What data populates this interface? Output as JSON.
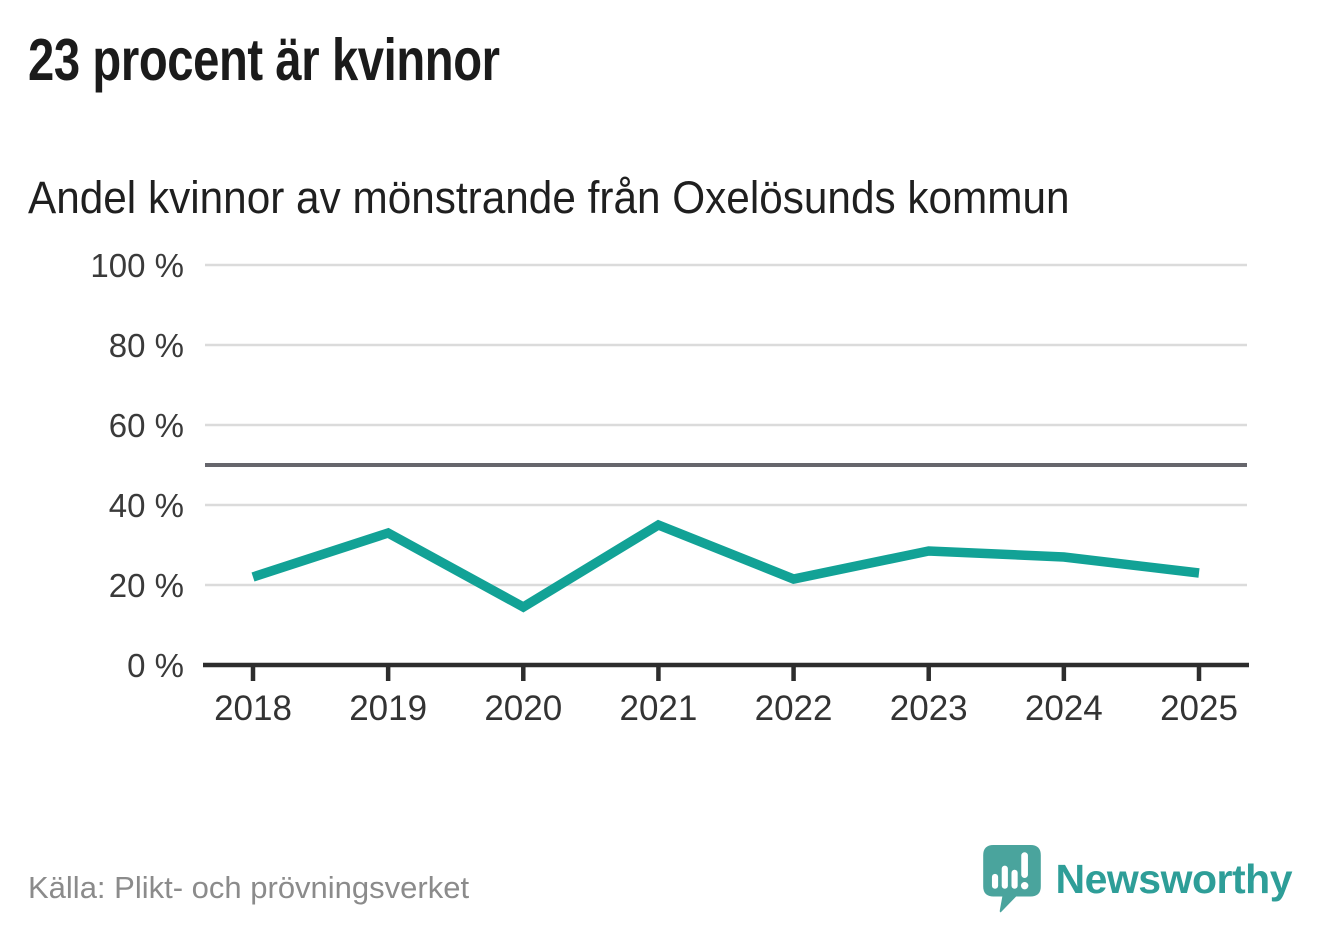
{
  "header": {
    "title": "23 procent är kvinnor",
    "subtitle": "Andel kvinnor av mönstrande från Oxelösunds kommun"
  },
  "footer": {
    "source": "Källa: Plikt- och prövningsverket",
    "brand": "Newsworthy"
  },
  "colors": {
    "line": "#12A296",
    "reference_line": "#66666C",
    "gridline": "#DBDBDB",
    "axis": "#2D2D2D",
    "y_label": "#3A3A3A",
    "x_label": "#333333",
    "brand_icon_teal": "#4AA49D",
    "brand_text_teal": "#2E9E98"
  },
  "chart_data": {
    "type": "line",
    "x": [
      2018,
      2019,
      2020,
      2021,
      2022,
      2023,
      2024,
      2025
    ],
    "values": [
      22,
      33,
      14.5,
      35,
      21.5,
      28.5,
      27,
      23
    ],
    "series_name": "Andel kvinnor av mönstrande",
    "unit": "%",
    "title": "23 procent är kvinnor",
    "subtitle": "Andel kvinnor av mönstrande från Oxelösunds kommun",
    "xlabel": "",
    "ylabel": "",
    "ylim": [
      0,
      100
    ],
    "y_ticks": [
      0,
      20,
      40,
      60,
      80,
      100
    ],
    "y_tick_labels": [
      "0 %",
      "20 %",
      "40 %",
      "60 %",
      "80 %",
      "100 %"
    ],
    "reference_line": 50,
    "grid": true,
    "legend": false
  }
}
